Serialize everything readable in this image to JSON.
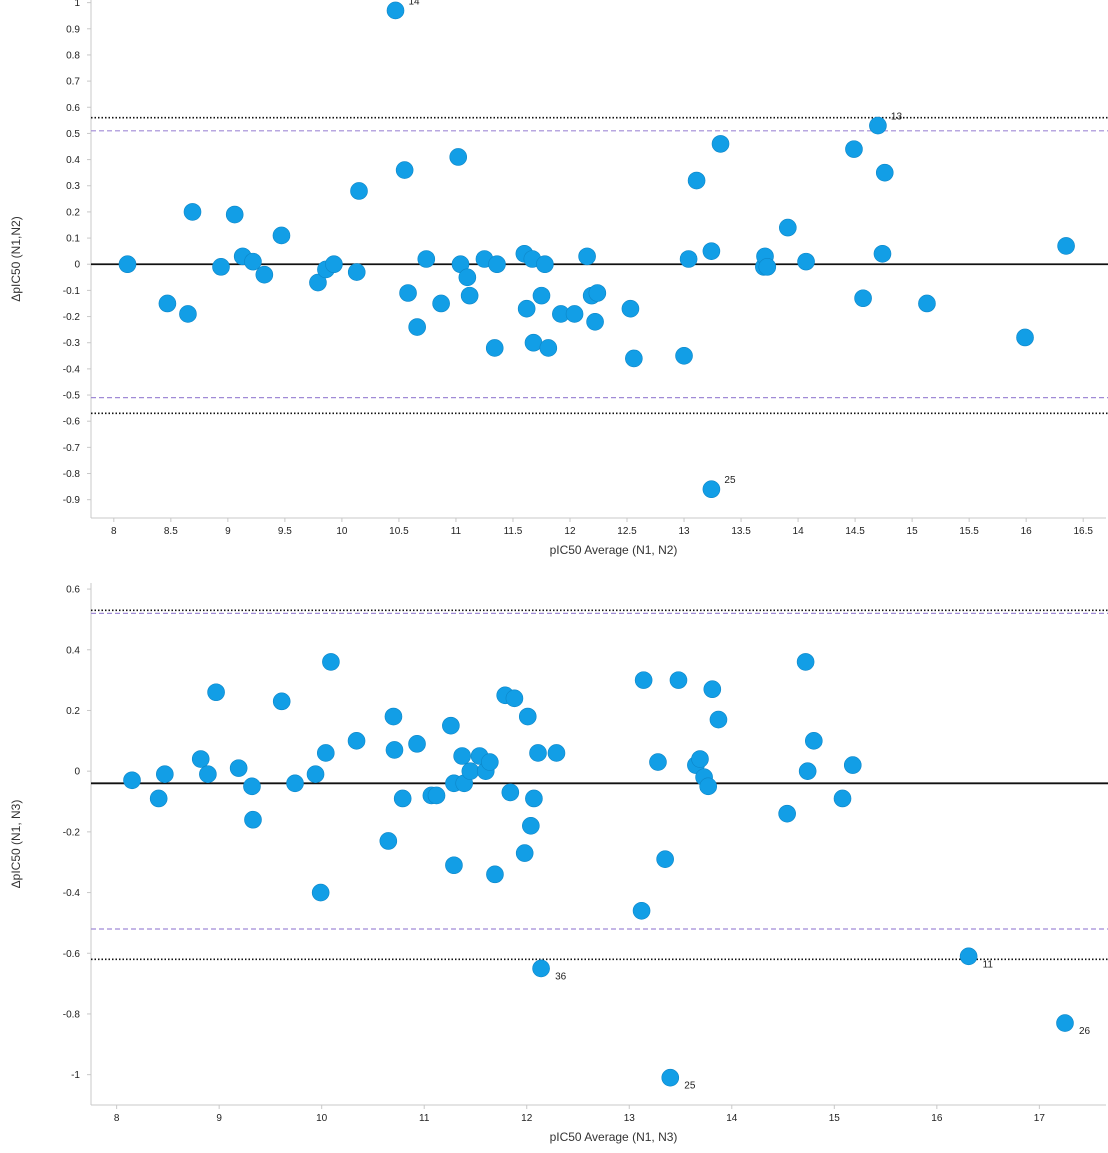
{
  "chart_data": [
    {
      "type": "scatter",
      "xlabel": "pIC50 Average (N1, N2)",
      "ylabel": "ΔpIC50 (N1,N2)",
      "xlim": [
        7.8,
        16.7
      ],
      "ylim": [
        -0.97,
        1.01
      ],
      "x_ticks": [
        8,
        8.5,
        9,
        9.5,
        10,
        10.5,
        11,
        11.5,
        12,
        12.5,
        13,
        13.5,
        14,
        14.5,
        15,
        15.5,
        16,
        16.5
      ],
      "x_tick_labels": [
        "8",
        "8.5",
        "9",
        "9.5",
        "10",
        "10.5",
        "11",
        "11.5",
        "12",
        "12.5",
        "13",
        "13.5",
        "14",
        "14.5",
        "15",
        "15.5",
        "16",
        "16.5"
      ],
      "y_ticks": [
        1,
        0.9,
        0.8,
        0.7,
        0.6,
        0.5,
        0.4,
        0.3,
        0.2,
        0.1,
        0,
        -0.1,
        -0.2,
        -0.3,
        -0.4,
        -0.5,
        -0.6,
        -0.7,
        -0.8,
        -0.9
      ],
      "y_tick_labels": [
        "1",
        "0.9",
        "0.8",
        "0.7",
        "0.6",
        "0.5",
        "0.4",
        "0.3",
        "0.2",
        "0.1",
        "0",
        "-0.1",
        "-0.2",
        "-0.3",
        "-0.4",
        "-0.5",
        "-0.6",
        "-0.7",
        "-0.8",
        "-0.9"
      ],
      "mean_line": 0.0,
      "limits_dashed": [
        0.51,
        -0.51
      ],
      "limits_dotted": [
        0.56,
        -0.57
      ],
      "marker_color": "#129ee6",
      "points": [
        {
          "x": 8.12,
          "y": 0.0
        },
        {
          "x": 8.47,
          "y": -0.15
        },
        {
          "x": 8.65,
          "y": -0.19
        },
        {
          "x": 8.69,
          "y": 0.2
        },
        {
          "x": 8.94,
          "y": -0.01
        },
        {
          "x": 9.06,
          "y": 0.19
        },
        {
          "x": 9.13,
          "y": 0.03
        },
        {
          "x": 9.22,
          "y": 0.01
        },
        {
          "x": 9.32,
          "y": -0.04
        },
        {
          "x": 9.47,
          "y": 0.11
        },
        {
          "x": 9.79,
          "y": -0.07
        },
        {
          "x": 9.86,
          "y": -0.02
        },
        {
          "x": 9.93,
          "y": 0.0
        },
        {
          "x": 10.13,
          "y": -0.03
        },
        {
          "x": 10.15,
          "y": 0.28
        },
        {
          "x": 10.47,
          "y": 0.97,
          "label": "14"
        },
        {
          "x": 10.55,
          "y": 0.36
        },
        {
          "x": 10.58,
          "y": -0.11
        },
        {
          "x": 10.66,
          "y": -0.24
        },
        {
          "x": 10.74,
          "y": 0.02
        },
        {
          "x": 10.87,
          "y": -0.15
        },
        {
          "x": 11.02,
          "y": 0.41
        },
        {
          "x": 11.04,
          "y": 0.0
        },
        {
          "x": 11.1,
          "y": -0.05
        },
        {
          "x": 11.12,
          "y": -0.12
        },
        {
          "x": 11.25,
          "y": 0.02
        },
        {
          "x": 11.34,
          "y": -0.32
        },
        {
          "x": 11.36,
          "y": 0.0
        },
        {
          "x": 11.6,
          "y": 0.04
        },
        {
          "x": 11.62,
          "y": -0.17
        },
        {
          "x": 11.67,
          "y": 0.02
        },
        {
          "x": 11.68,
          "y": -0.3
        },
        {
          "x": 11.75,
          "y": -0.12
        },
        {
          "x": 11.78,
          "y": 0.0
        },
        {
          "x": 11.81,
          "y": -0.32
        },
        {
          "x": 11.92,
          "y": -0.19
        },
        {
          "x": 12.04,
          "y": -0.19
        },
        {
          "x": 12.15,
          "y": 0.03
        },
        {
          "x": 12.19,
          "y": -0.12
        },
        {
          "x": 12.22,
          "y": -0.22
        },
        {
          "x": 12.24,
          "y": -0.11
        },
        {
          "x": 12.53,
          "y": -0.17
        },
        {
          "x": 12.56,
          "y": -0.36
        },
        {
          "x": 13.0,
          "y": -0.35
        },
        {
          "x": 13.04,
          "y": 0.02
        },
        {
          "x": 13.11,
          "y": 0.32
        },
        {
          "x": 13.24,
          "y": 0.05
        },
        {
          "x": 13.24,
          "y": -0.86,
          "label": "25"
        },
        {
          "x": 13.32,
          "y": 0.46
        },
        {
          "x": 13.7,
          "y": -0.01
        },
        {
          "x": 13.71,
          "y": 0.03
        },
        {
          "x": 13.73,
          "y": -0.01
        },
        {
          "x": 13.91,
          "y": 0.14
        },
        {
          "x": 14.07,
          "y": 0.01
        },
        {
          "x": 14.49,
          "y": 0.44
        },
        {
          "x": 14.57,
          "y": -0.13
        },
        {
          "x": 14.7,
          "y": 0.53,
          "label": "13"
        },
        {
          "x": 14.74,
          "y": 0.04
        },
        {
          "x": 14.76,
          "y": 0.35
        },
        {
          "x": 15.13,
          "y": -0.15
        },
        {
          "x": 15.99,
          "y": -0.28
        },
        {
          "x": 16.35,
          "y": 0.07
        }
      ]
    },
    {
      "type": "scatter",
      "xlabel": "pIC50 Average (N1, N3)",
      "ylabel": "ΔpIC50 (N1, N3)",
      "xlim": [
        7.75,
        17.65
      ],
      "ylim": [
        -1.1,
        0.62
      ],
      "x_ticks": [
        8,
        9,
        10,
        11,
        12,
        13,
        14,
        15,
        16,
        17
      ],
      "x_tick_labels": [
        "8",
        "9",
        "10",
        "11",
        "12",
        "13",
        "14",
        "15",
        "16",
        "17"
      ],
      "y_ticks": [
        0.6,
        0.4,
        0.2,
        0,
        -0.2,
        -0.4,
        -0.6,
        -0.8,
        -1
      ],
      "y_tick_labels": [
        "0.6",
        "0.4",
        "0.2",
        "0",
        "-0.2",
        "-0.4",
        "-0.6",
        "-0.8",
        "-1"
      ],
      "mean_line": -0.04,
      "limits_dashed": [
        0.52,
        -0.52
      ],
      "limits_dotted": [
        0.53,
        -0.62
      ],
      "marker_color": "#129ee6",
      "points": [
        {
          "x": 8.15,
          "y": -0.03
        },
        {
          "x": 8.41,
          "y": -0.09
        },
        {
          "x": 8.47,
          "y": -0.01
        },
        {
          "x": 8.82,
          "y": 0.04
        },
        {
          "x": 8.89,
          "y": -0.01
        },
        {
          "x": 8.97,
          "y": 0.26
        },
        {
          "x": 9.19,
          "y": 0.01
        },
        {
          "x": 9.32,
          "y": -0.05
        },
        {
          "x": 9.33,
          "y": -0.16
        },
        {
          "x": 9.61,
          "y": 0.23
        },
        {
          "x": 9.74,
          "y": -0.04
        },
        {
          "x": 9.94,
          "y": -0.01
        },
        {
          "x": 9.99,
          "y": -0.4
        },
        {
          "x": 10.04,
          "y": 0.06
        },
        {
          "x": 10.09,
          "y": 0.36
        },
        {
          "x": 10.34,
          "y": 0.1
        },
        {
          "x": 10.65,
          "y": -0.23
        },
        {
          "x": 10.7,
          "y": 0.18
        },
        {
          "x": 10.71,
          "y": 0.07
        },
        {
          "x": 10.79,
          "y": -0.09
        },
        {
          "x": 10.93,
          "y": 0.09
        },
        {
          "x": 11.07,
          "y": -0.08
        },
        {
          "x": 11.12,
          "y": -0.08
        },
        {
          "x": 11.26,
          "y": 0.15
        },
        {
          "x": 11.29,
          "y": -0.04
        },
        {
          "x": 11.29,
          "y": -0.31
        },
        {
          "x": 11.37,
          "y": 0.05
        },
        {
          "x": 11.39,
          "y": -0.04
        },
        {
          "x": 11.45,
          "y": 0.0
        },
        {
          "x": 11.54,
          "y": 0.05
        },
        {
          "x": 11.6,
          "y": 0.0
        },
        {
          "x": 11.64,
          "y": 0.03
        },
        {
          "x": 11.69,
          "y": -0.34
        },
        {
          "x": 11.79,
          "y": 0.25
        },
        {
          "x": 11.84,
          "y": -0.07
        },
        {
          "x": 11.88,
          "y": 0.24
        },
        {
          "x": 11.98,
          "y": -0.27
        },
        {
          "x": 12.01,
          "y": 0.18
        },
        {
          "x": 12.04,
          "y": -0.18
        },
        {
          "x": 12.07,
          "y": -0.09
        },
        {
          "x": 12.11,
          "y": 0.06
        },
        {
          "x": 12.14,
          "y": -0.65,
          "label": "36"
        },
        {
          "x": 12.29,
          "y": 0.06
        },
        {
          "x": 13.12,
          "y": -0.46
        },
        {
          "x": 13.14,
          "y": 0.3
        },
        {
          "x": 13.28,
          "y": 0.03
        },
        {
          "x": 13.35,
          "y": -0.29
        },
        {
          "x": 13.4,
          "y": -1.01,
          "label": "25"
        },
        {
          "x": 13.48,
          "y": 0.3
        },
        {
          "x": 13.65,
          "y": 0.02
        },
        {
          "x": 13.69,
          "y": 0.04
        },
        {
          "x": 13.73,
          "y": -0.02
        },
        {
          "x": 13.77,
          "y": -0.05
        },
        {
          "x": 13.81,
          "y": 0.27
        },
        {
          "x": 13.87,
          "y": 0.17
        },
        {
          "x": 14.54,
          "y": -0.14
        },
        {
          "x": 14.72,
          "y": 0.36
        },
        {
          "x": 14.74,
          "y": 0.0
        },
        {
          "x": 14.8,
          "y": 0.1
        },
        {
          "x": 15.08,
          "y": -0.09
        },
        {
          "x": 15.18,
          "y": 0.02
        },
        {
          "x": 16.31,
          "y": -0.61,
          "label": "11"
        },
        {
          "x": 17.25,
          "y": -0.83,
          "label": "26"
        }
      ]
    }
  ]
}
